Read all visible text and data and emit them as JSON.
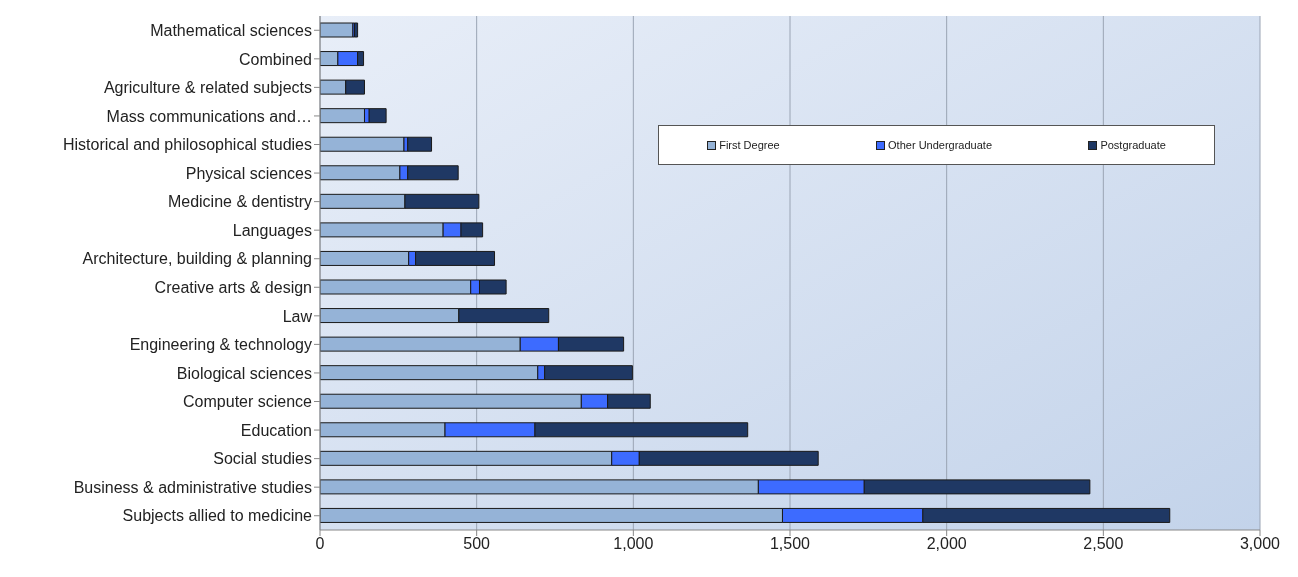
{
  "chart_data": {
    "type": "bar",
    "orientation": "horizontal",
    "stacked": true,
    "categories": [
      "Mathematical sciences",
      "Combined",
      "Agriculture & related subjects",
      "Mass communications and…",
      "Historical and philosophical studies",
      "Physical sciences",
      "Medicine & dentistry",
      "Languages",
      "Architecture, building & planning",
      "Creative arts & design",
      "Law",
      "Engineering & technology",
      "Biological sciences",
      "Computer science",
      "Education",
      "Social studies",
      "Business & administrative studies",
      "Subjects allied to medicine"
    ],
    "series": [
      {
        "name": "First Degree",
        "color": "#95b3d7",
        "values": [
          105,
          57,
          82,
          142,
          268,
          255,
          271,
          393,
          283,
          481,
          443,
          639,
          695,
          834,
          399,
          931,
          1399,
          1476
        ]
      },
      {
        "name": "Other Undergraduate",
        "color": "#3d6bff",
        "values": [
          5,
          63,
          0,
          15,
          12,
          25,
          0,
          57,
          22,
          28,
          null,
          122,
          22,
          84,
          287,
          88,
          338,
          448
        ]
      },
      {
        "name": "Postgraduate",
        "color": "#1f3864",
        "values": [
          10,
          19,
          60,
          54,
          76,
          161,
          236,
          69,
          252,
          85,
          287,
          208,
          280,
          136,
          679,
          571,
          720,
          788
        ]
      }
    ],
    "xlim": [
      0,
      3000
    ],
    "xticks": [
      0,
      {
        "value": 500,
        "label": "500"
      },
      {
        "value": 1000,
        "label": "1,000"
      },
      {
        "value": 1500,
        "label": "1,500"
      },
      {
        "value": 2000,
        "label": "2,000"
      },
      {
        "value": 2500,
        "label": "2,500"
      },
      {
        "value": 3000,
        "label": "3,000"
      }
    ],
    "grid": "x",
    "legend": "top right"
  }
}
